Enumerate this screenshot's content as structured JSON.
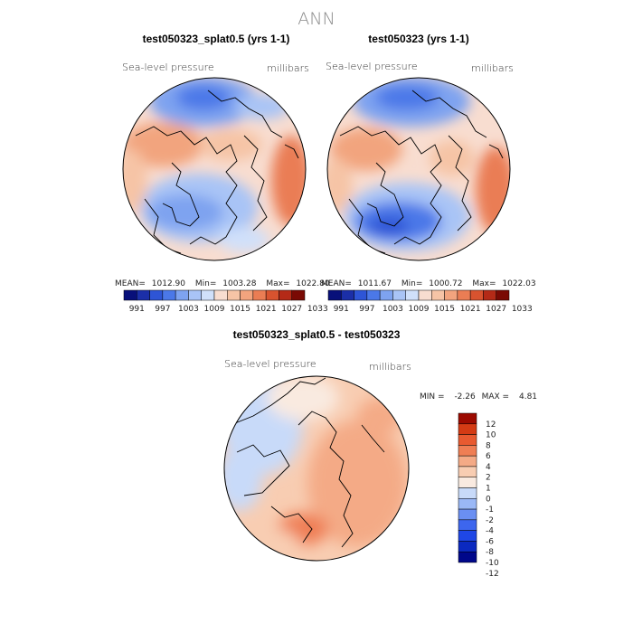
{
  "title": "ANN",
  "colors": {
    "seq": [
      "#08107a",
      "#1b2fa8",
      "#2e55d6",
      "#4b78e8",
      "#7ea3f0",
      "#a9c4f6",
      "#d0e0fa",
      "#f8ddd0",
      "#f6c4a6",
      "#f2a47e",
      "#ea7d54",
      "#d8532f",
      "#b42a17",
      "#7a0a04"
    ],
    "diff": [
      "#00078a",
      "#0b29c0",
      "#1f47e6",
      "#3d66ee",
      "#6a8ff2",
      "#9ab8f6",
      "#c8daf9",
      "#f9eae0",
      "#f8cdb2",
      "#f4aa86",
      "#ef7e54",
      "#e85a30",
      "#d43b14",
      "#9c0a00"
    ]
  },
  "chart_data": [
    {
      "type": "heatmap",
      "projection": "north polar stereographic",
      "title": "test050323_splat0.5 (yrs 1-1)",
      "field": "Sea-level pressure",
      "units": "millibars",
      "stats": {
        "mean_label": "MEAN=",
        "mean": "1012.90",
        "min_label": "Min=",
        "min": "1003.28",
        "max_label": "Max=",
        "max": "1022.80"
      },
      "colorbar_ticks": [
        "991",
        "997",
        "1003",
        "1009",
        "1015",
        "1021",
        "1027",
        "1033"
      ]
    },
    {
      "type": "heatmap",
      "projection": "north polar stereographic",
      "title": "test050323 (yrs 1-1)",
      "field": "Sea-level pressure",
      "units": "millibars",
      "stats": {
        "mean_label": "MEAN=",
        "mean": "1011.67",
        "min_label": "Min=",
        "min": "1000.72",
        "max_label": "Max=",
        "max": "1022.03"
      },
      "colorbar_ticks": [
        "991",
        "997",
        "1003",
        "1009",
        "1015",
        "1021",
        "1027",
        "1033"
      ]
    },
    {
      "type": "heatmap",
      "projection": "north polar stereographic",
      "title": "test050323_splat0.5 - test050323",
      "field": "Sea-level pressure",
      "units": "millibars",
      "stats": {
        "min_label": "MIN =",
        "min": "-2.26",
        "max_label": "MAX =",
        "max": "4.81"
      },
      "colorbar_ticks": [
        "12",
        "10",
        "8",
        "6",
        "4",
        "2",
        "1",
        "0",
        "-1",
        "-2",
        "-4",
        "-6",
        "-8",
        "-10",
        "-12"
      ]
    }
  ]
}
